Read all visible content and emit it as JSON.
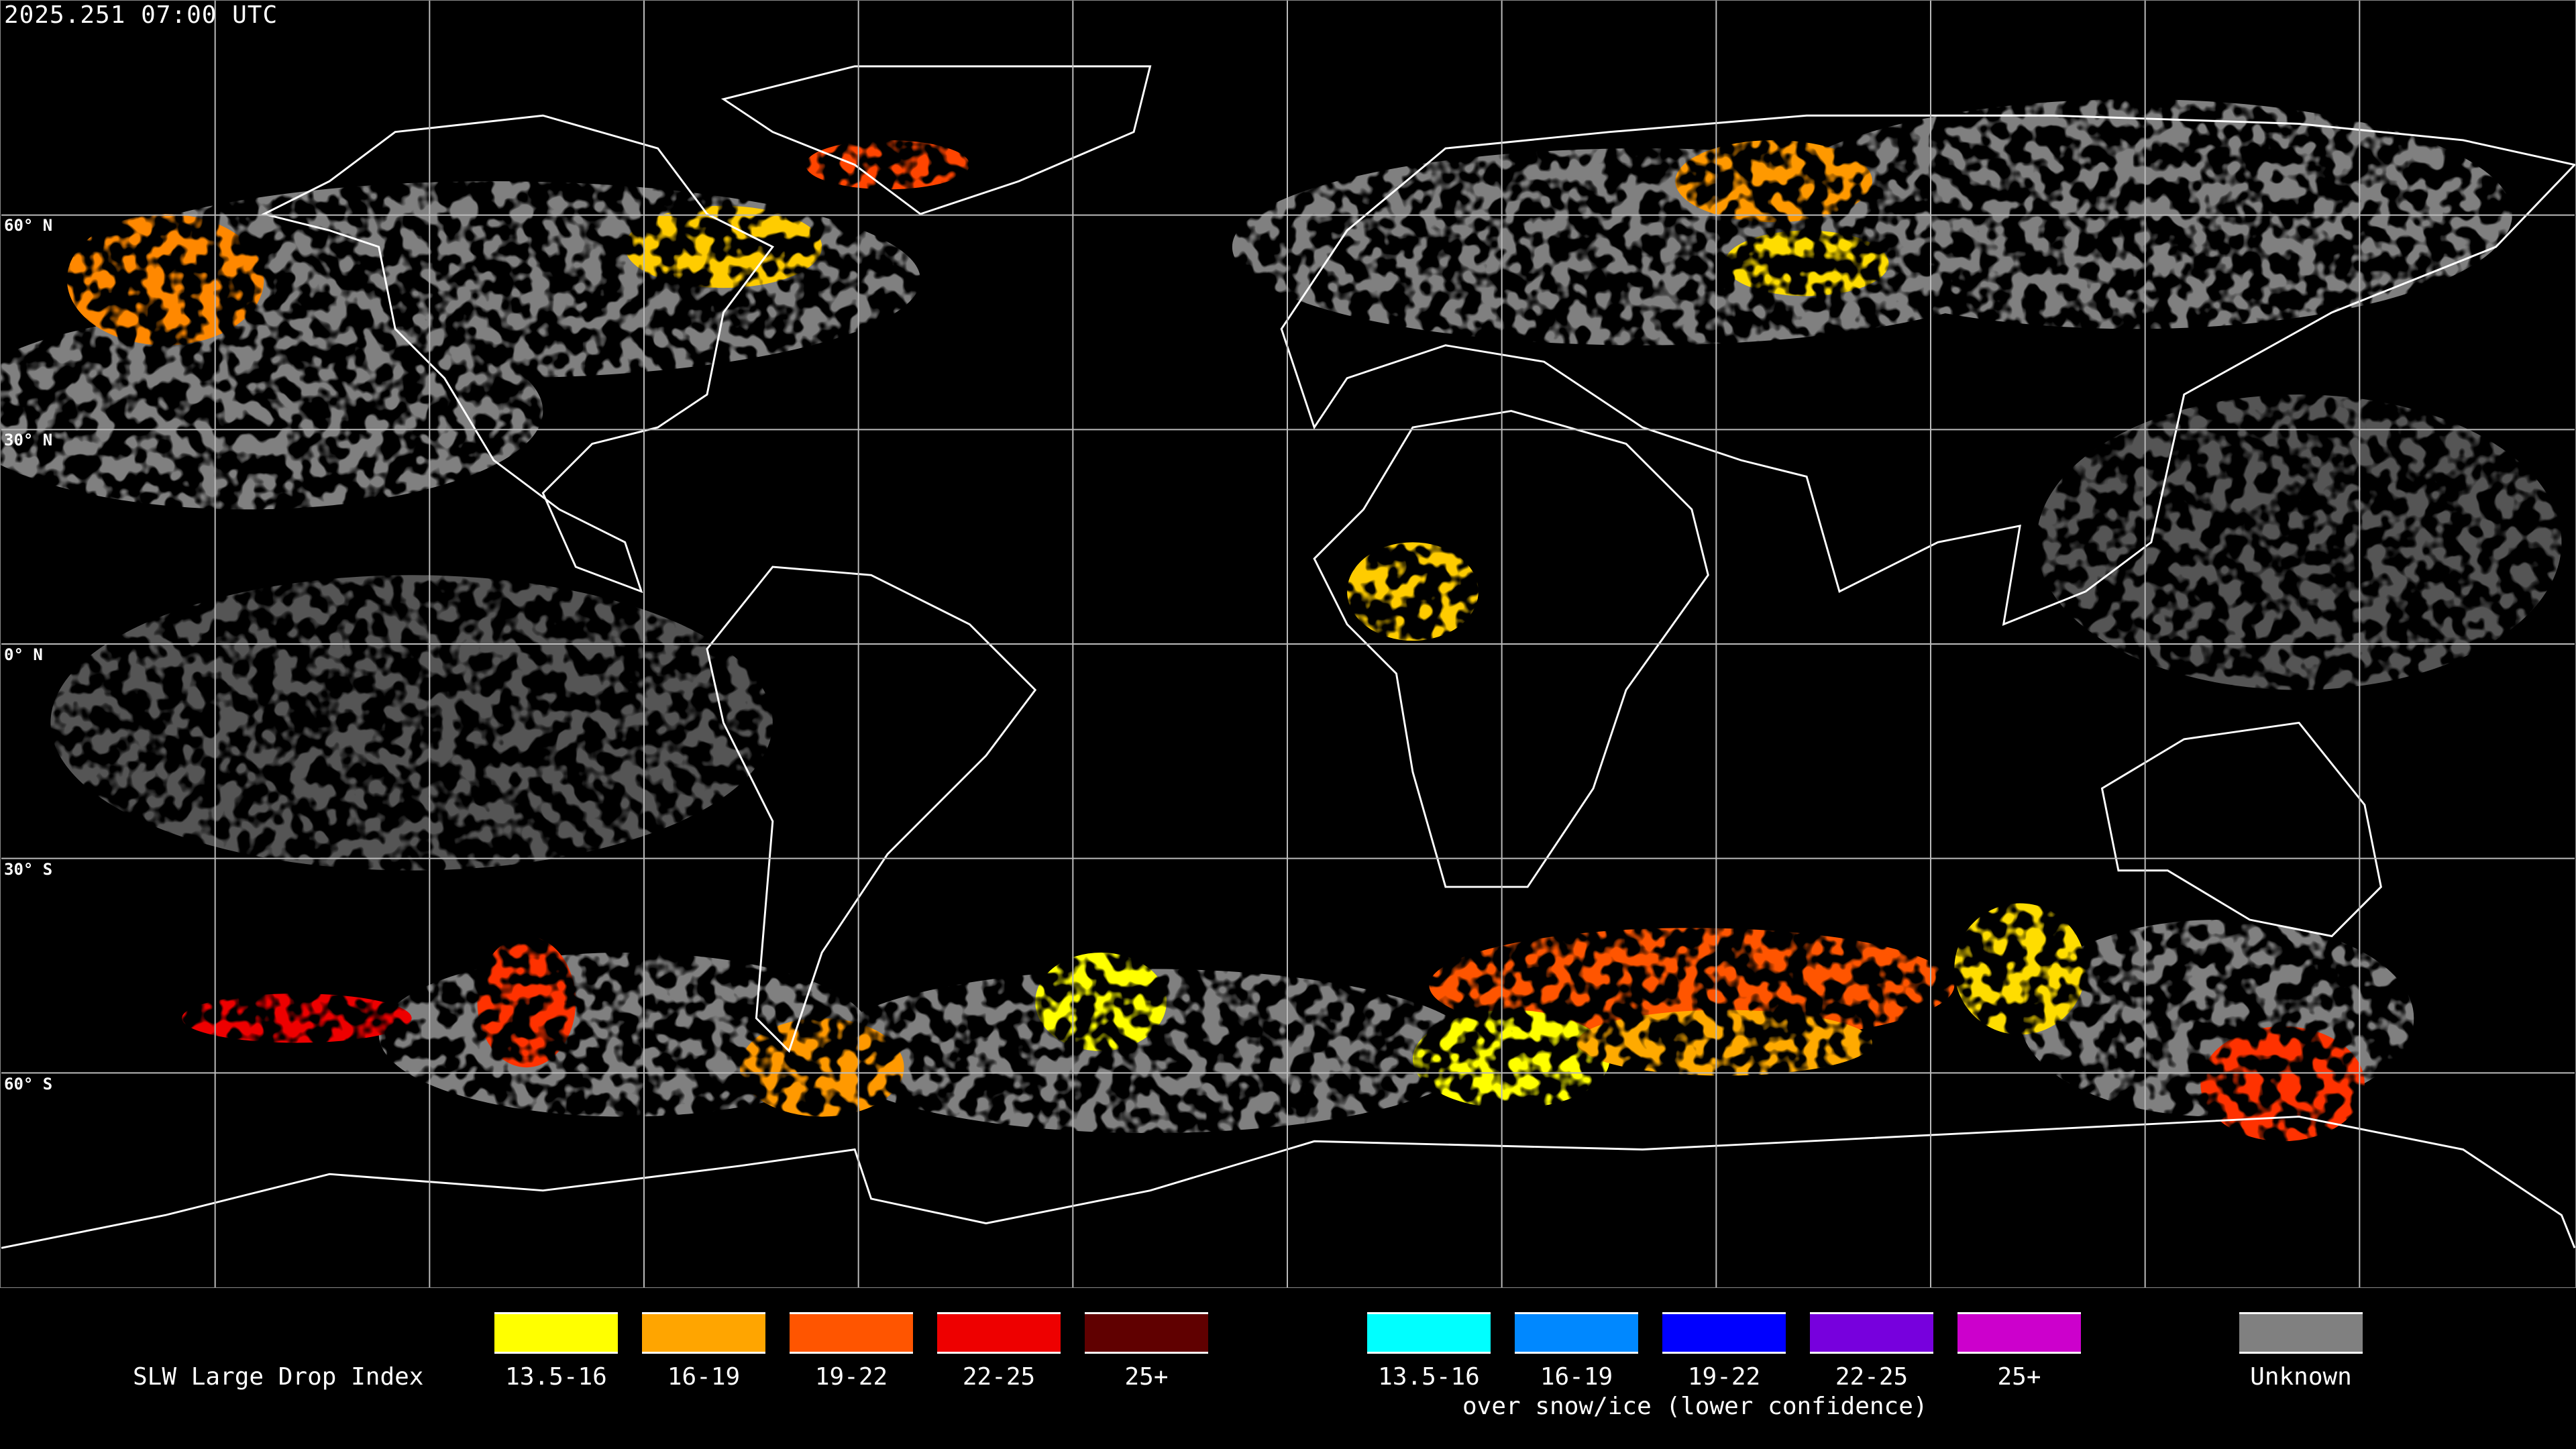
{
  "header": {
    "timestamp": "2025.251 07:00 UTC"
  },
  "map": {
    "latitude_labels": [
      "60° N",
      "30° N",
      "0° N",
      "30° S",
      "60° S"
    ],
    "graticule_spacing_deg": 30
  },
  "legend": {
    "title": "SLW Large Drop Index",
    "main": [
      {
        "label": "13.5-16",
        "color": "#ffff00"
      },
      {
        "label": "16-19",
        "color": "#ffa500"
      },
      {
        "label": "19-22",
        "color": "#ff5500"
      },
      {
        "label": "22-25",
        "color": "#ee0000"
      },
      {
        "label": "25+",
        "color": "#600000"
      }
    ],
    "snow_ice": [
      {
        "label": "13.5-16",
        "color": "#00ffff"
      },
      {
        "label": "16-19",
        "color": "#0088ff"
      },
      {
        "label": "19-22",
        "color": "#0000ff"
      },
      {
        "label": "22-25",
        "color": "#7700dd"
      },
      {
        "label": "25+",
        "color": "#cc00cc"
      }
    ],
    "snow_ice_caption": "over snow/ice (lower confidence)",
    "unknown": {
      "label": "Unknown",
      "color": "#808080"
    }
  }
}
